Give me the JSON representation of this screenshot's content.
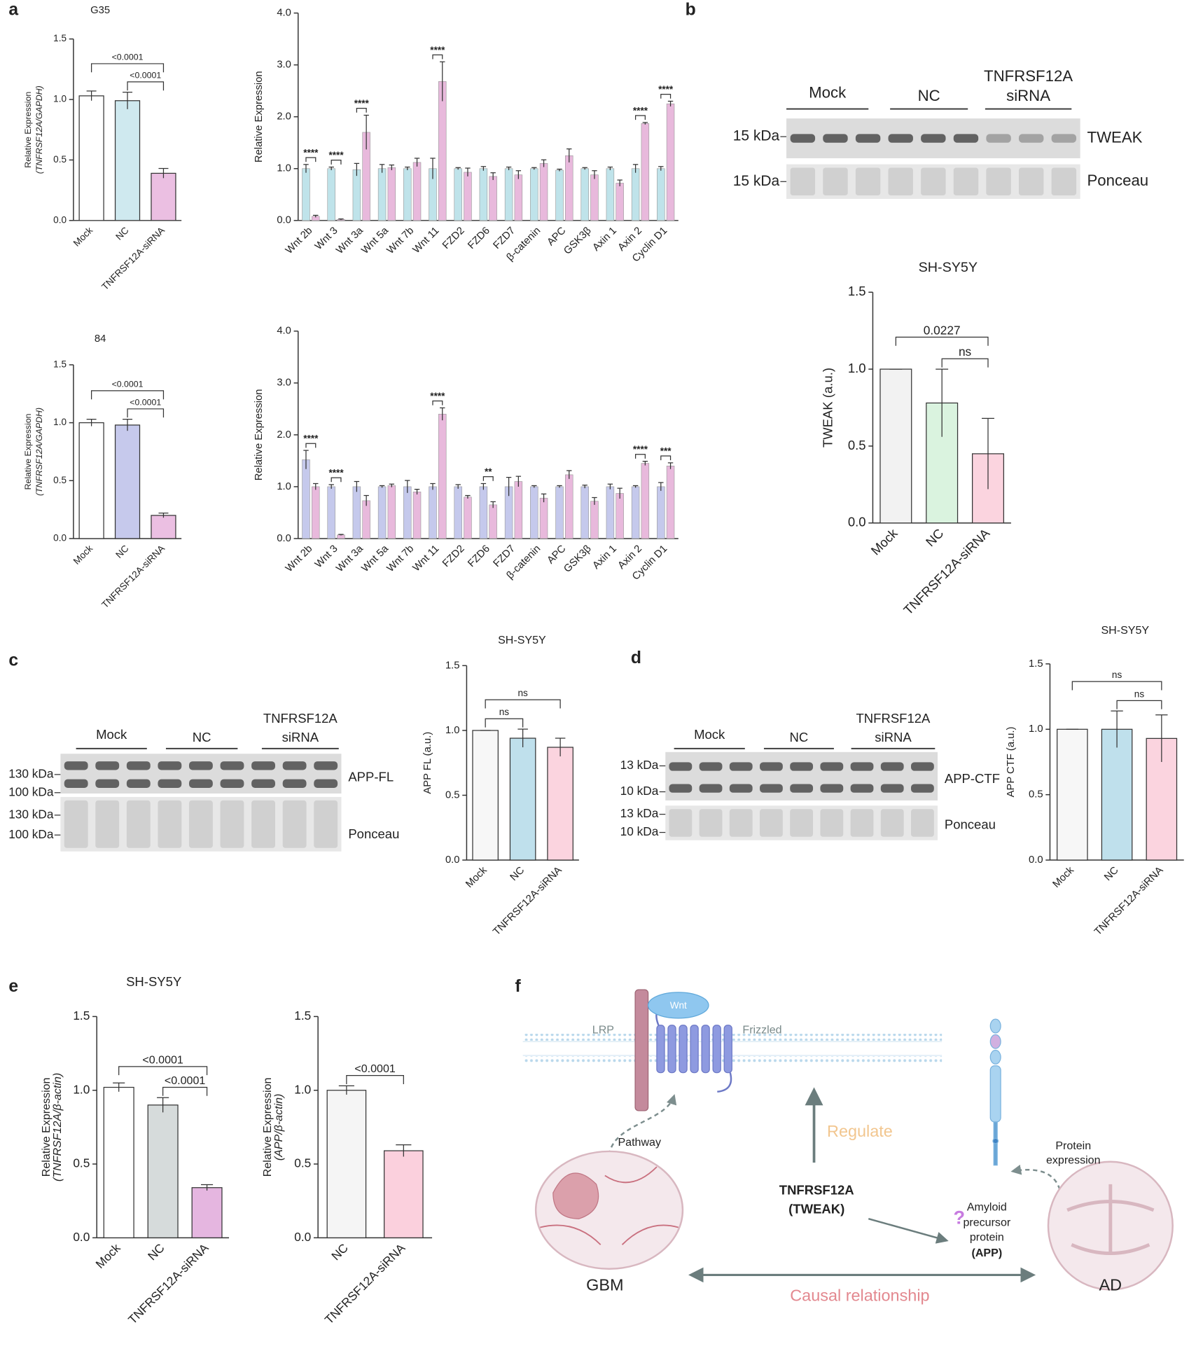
{
  "chart_data": [
    {
      "type": "bar",
      "title": "G35",
      "ylabel": [
        "Relative Expression",
        "(TNFRSF12A/GAPDH)"
      ],
      "categories": [
        "Mock",
        "NC",
        "TNFRSF12A-siRNA"
      ],
      "values": [
        1.03,
        0.99,
        0.39
      ],
      "errors": [
        0.04,
        0.07,
        0.04
      ],
      "colors": [
        "#ffffff",
        "#cfe9ef",
        "#ebbfe2"
      ],
      "ylim": [
        0,
        1.5
      ],
      "yticks": [
        {
          "value": 0,
          "label": "0.0"
        },
        0.5,
        {
          "value": 1,
          "label": "1.0"
        },
        1.5
      ],
      "annotations": [
        {
          "text": "<0.0001",
          "from": 0,
          "to": 2
        },
        {
          "text": "<0.0001",
          "from": 1,
          "to": 2
        }
      ]
    },
    {
      "type": "bar",
      "ylabel": [
        "Relative Expression"
      ],
      "categories": [
        "Wnt 2b",
        "Wnt 3",
        "Wnt 3a",
        "Wnt 5a",
        "Wnt 7b",
        "Wnt 11",
        "FZD2",
        "FZD6",
        "FZD7",
        "β-catenin",
        "APC",
        "GSK3β",
        "Axin 1",
        "Axin 2",
        "Cyclin D1"
      ],
      "series": [
        {
          "color": "#bfe3ea",
          "values": [
            1.0,
            1.0,
            0.98,
            1.0,
            1.0,
            1.0,
            1.0,
            1.0,
            1.0,
            1.0,
            0.97,
            1.0,
            1.0,
            1.0,
            1.0
          ],
          "errors": [
            0.08,
            0.03,
            0.12,
            0.08,
            0.03,
            0.2,
            0.02,
            0.04,
            0.03,
            0.02,
            0.02,
            0.02,
            0.03,
            0.08,
            0.04
          ]
        },
        {
          "color": "#e8b9dc",
          "values": [
            0.08,
            0.02,
            1.7,
            1.02,
            1.12,
            2.68,
            0.93,
            0.85,
            0.88,
            1.1,
            1.25,
            0.88,
            0.72,
            1.87,
            2.25
          ],
          "errors": [
            0.02,
            0.01,
            0.33,
            0.05,
            0.08,
            0.38,
            0.08,
            0.07,
            0.08,
            0.07,
            0.13,
            0.08,
            0.06,
            0.02,
            0.05
          ]
        }
      ],
      "ylim": [
        0,
        4
      ],
      "yticks": [
        {
          "value": 0,
          "label": "0.0"
        },
        {
          "value": 1,
          "label": "1.0"
        },
        {
          "value": 2,
          "label": "2.0"
        },
        {
          "value": 3,
          "label": "3.0"
        },
        {
          "value": 4,
          "label": "4.0"
        }
      ],
      "annotations": [
        {
          "category": 0,
          "text": "****"
        },
        {
          "category": 1,
          "text": "****"
        },
        {
          "category": 2,
          "text": "****"
        },
        {
          "category": 5,
          "text": "****"
        },
        {
          "category": 13,
          "text": "****"
        },
        {
          "category": 14,
          "text": "****"
        }
      ]
    },
    {
      "type": "bar",
      "title": "84",
      "ylabel": [
        "Relative Expression",
        "(TNFRSF12A/GAPDH)"
      ],
      "categories": [
        "Mock",
        "NC",
        "TNFRSF12A-siRNA"
      ],
      "values": [
        1.0,
        0.98,
        0.2
      ],
      "errors": [
        0.03,
        0.05,
        0.02
      ],
      "colors": [
        "#ffffff",
        "#c6c9ec",
        "#ebbfe2"
      ],
      "ylim": [
        0,
        1.5
      ],
      "yticks": [
        {
          "value": 0,
          "label": "0.0"
        },
        0.5,
        {
          "value": 1,
          "label": "1.0"
        },
        1.5
      ],
      "annotations": [
        {
          "text": "<0.0001",
          "from": 0,
          "to": 2
        },
        {
          "text": "<0.0001",
          "from": 1,
          "to": 2
        }
      ]
    },
    {
      "type": "bar",
      "ylabel": [
        "Relative Expression"
      ],
      "categories": [
        "Wnt 2b",
        "Wnt 3",
        "Wnt 3a",
        "Wnt 5a",
        "Wnt 7b",
        "Wnt 11",
        "FZD2",
        "FZD6",
        "FZD7",
        "β-catenin",
        "APC",
        "GSK3β",
        "Axin 1",
        "Axin 2",
        "Cyclin D1"
      ],
      "series": [
        {
          "color": "#c5c9ec",
          "values": [
            1.52,
            1.0,
            1.0,
            1.0,
            1.0,
            1.0,
            1.0,
            1.0,
            1.0,
            1.0,
            1.0,
            1.0,
            1.0,
            1.0,
            1.0
          ],
          "errors": [
            0.18,
            0.04,
            0.1,
            0.02,
            0.12,
            0.06,
            0.04,
            0.06,
            0.18,
            0.02,
            0.02,
            0.03,
            0.05,
            0.02,
            0.08
          ]
        },
        {
          "color": "#e8b9dc",
          "values": [
            1.0,
            0.07,
            0.73,
            1.02,
            0.9,
            2.4,
            0.8,
            0.65,
            1.1,
            0.78,
            1.23,
            0.72,
            0.87,
            1.45,
            1.4
          ],
          "errors": [
            0.06,
            0.01,
            0.1,
            0.03,
            0.05,
            0.12,
            0.03,
            0.06,
            0.1,
            0.08,
            0.08,
            0.07,
            0.1,
            0.04,
            0.06
          ]
        }
      ],
      "ylim": [
        0,
        4
      ],
      "yticks": [
        {
          "value": 0,
          "label": "0.0"
        },
        {
          "value": 1,
          "label": "1.0"
        },
        {
          "value": 2,
          "label": "2.0"
        },
        {
          "value": 3,
          "label": "3.0"
        },
        {
          "value": 4,
          "label": "4.0"
        }
      ],
      "annotations": [
        {
          "category": 0,
          "text": "****"
        },
        {
          "category": 1,
          "text": "****"
        },
        {
          "category": 5,
          "text": "****"
        },
        {
          "category": 7,
          "text": "**"
        },
        {
          "category": 13,
          "text": "****"
        },
        {
          "category": 14,
          "text": "***"
        }
      ]
    },
    {
      "type": "bar",
      "title": "SH-SY5Y",
      "ylabel": [
        "TWEAK (a.u.)"
      ],
      "categories": [
        "Mock",
        "NC",
        "TNFRSF12A-siRNA"
      ],
      "values": [
        1.0,
        0.78,
        0.45
      ],
      "errors": [
        0.0,
        0.22,
        0.23
      ],
      "colors": [
        "#f2f2f2",
        "#daf3df",
        "#fbd4df"
      ],
      "ylim": [
        0,
        1.5
      ],
      "yticks": [
        {
          "value": 0,
          "label": "0.0"
        },
        0.5,
        {
          "value": 1,
          "label": "1.0"
        },
        1.5
      ],
      "annotations": [
        {
          "text": "0.0227",
          "from": 0,
          "to": 2
        },
        {
          "text": "ns",
          "from": 1,
          "to": 2
        }
      ]
    },
    {
      "type": "bar",
      "title": "SH-SY5Y",
      "ylabel": [
        "APP FL (a.u.)"
      ],
      "categories": [
        "Mock",
        "NC",
        "TNFRSF12A-siRNA"
      ],
      "values": [
        1.0,
        0.94,
        0.87
      ],
      "errors": [
        0.0,
        0.07,
        0.07
      ],
      "colors": [
        "#f7f7f7",
        "#bfe0ec",
        "#fbd4df"
      ],
      "ylim": [
        0,
        1.5
      ],
      "yticks": [
        {
          "value": 0,
          "label": "0.0"
        },
        0.5,
        {
          "value": 1,
          "label": "1.0"
        },
        1.5
      ],
      "annotations": [
        {
          "text": "ns",
          "from": 0,
          "to": 2
        },
        {
          "text": "ns",
          "from": 0,
          "to": 1
        }
      ]
    },
    {
      "type": "bar",
      "title": "SH-SY5Y",
      "ylabel": [
        "APP CTF (a.u.)"
      ],
      "categories": [
        "Mock",
        "NC",
        "TNFRSF12A-siRNA"
      ],
      "values": [
        1.0,
        1.0,
        0.93
      ],
      "errors": [
        0.0,
        0.14,
        0.18
      ],
      "colors": [
        "#f7f7f7",
        "#bfe0ec",
        "#fbd4df"
      ],
      "ylim": [
        0,
        1.5
      ],
      "yticks": [
        {
          "value": 0,
          "label": "0.0"
        },
        0.5,
        {
          "value": 1,
          "label": "1.0"
        },
        1.5
      ],
      "annotations": [
        {
          "text": "ns",
          "from": 0,
          "to": 2
        },
        {
          "text": "ns",
          "from": 1,
          "to": 2
        }
      ]
    },
    {
      "type": "bar",
      "title": "SH-SY5Y",
      "ylabel": [
        "Relative Expression",
        "(TNFRSF12A/β-actin)"
      ],
      "categories": [
        "Mock",
        "NC",
        "TNFRSF12A-siRNA"
      ],
      "values": [
        1.02,
        0.9,
        0.34
      ],
      "errors": [
        0.03,
        0.05,
        0.02
      ],
      "colors": [
        "#ffffff",
        "#d6dbdb",
        "#e5b6e0"
      ],
      "ylim": [
        0,
        1.5
      ],
      "yticks": [
        {
          "value": 0,
          "label": "0.0"
        },
        0.5,
        {
          "value": 1,
          "label": "1.0"
        },
        1.5
      ],
      "annotations": [
        {
          "text": "<0.0001",
          "from": 0,
          "to": 2
        },
        {
          "text": "<0.0001",
          "from": 1,
          "to": 2
        }
      ]
    },
    {
      "type": "bar",
      "ylabel": [
        "Relative Expression",
        "(APP/β-actin)"
      ],
      "categories": [
        "NC",
        "TNFRSF12A-siRNA"
      ],
      "values": [
        1.0,
        0.59
      ],
      "errors": [
        0.03,
        0.04
      ],
      "colors": [
        "#f5f5f5",
        "#fbd0dd"
      ],
      "ylim": [
        0,
        1.5
      ],
      "yticks": [
        {
          "value": 0,
          "label": "0.0"
        },
        0.5,
        {
          "value": 1,
          "label": "1.0"
        },
        1.5
      ],
      "annotations": [
        {
          "text": "<0.0001",
          "from": 0,
          "to": 1
        }
      ]
    }
  ],
  "panel_labels": [
    "a",
    "b",
    "c",
    "d",
    "e",
    "f"
  ],
  "blots": [
    {
      "groups": [
        [
          "Mock"
        ],
        [
          "NC"
        ],
        [
          "TNFRSF12A",
          "siRNA"
        ]
      ],
      "rows": [
        {
          "label": "TWEAK",
          "markers": [
            "15 kDa"
          ]
        },
        {
          "label": "Ponceau",
          "markers": [
            "15 kDa"
          ]
        }
      ]
    },
    {
      "groups": [
        [
          "Mock"
        ],
        [
          "NC"
        ],
        [
          "TNFRSF12A",
          "siRNA"
        ]
      ],
      "rows": [
        {
          "label": "APP-FL",
          "markers": [
            "130 kDa",
            "100 kDa"
          ]
        },
        {
          "label": "Ponceau",
          "markers": [
            "130 kDa",
            "100 kDa"
          ]
        }
      ]
    },
    {
      "groups": [
        [
          "Mock"
        ],
        [
          "NC"
        ],
        [
          "TNFRSF12A",
          "siRNA"
        ]
      ],
      "rows": [
        {
          "label": "APP-CTF",
          "markers": [
            "13 kDa",
            "10 kDa"
          ]
        },
        {
          "label": "Ponceau",
          "markers": [
            "13 kDa",
            "10 kDa"
          ]
        }
      ]
    }
  ],
  "diagram": {
    "wnt": "Wnt",
    "lrp": "LRP",
    "frizzled": "Frizzled",
    "pathway": "Pathway",
    "regulate": "Regulate",
    "tweak": [
      "TNFRSF12A",
      "(TWEAK)"
    ],
    "question": "?",
    "app": [
      "Amyloid",
      "precursor",
      "protein",
      "(APP)"
    ],
    "protein_expression": [
      "Protein",
      "expression"
    ],
    "gbm": "GBM",
    "ad": "AD",
    "causal": "Causal relationship"
  }
}
